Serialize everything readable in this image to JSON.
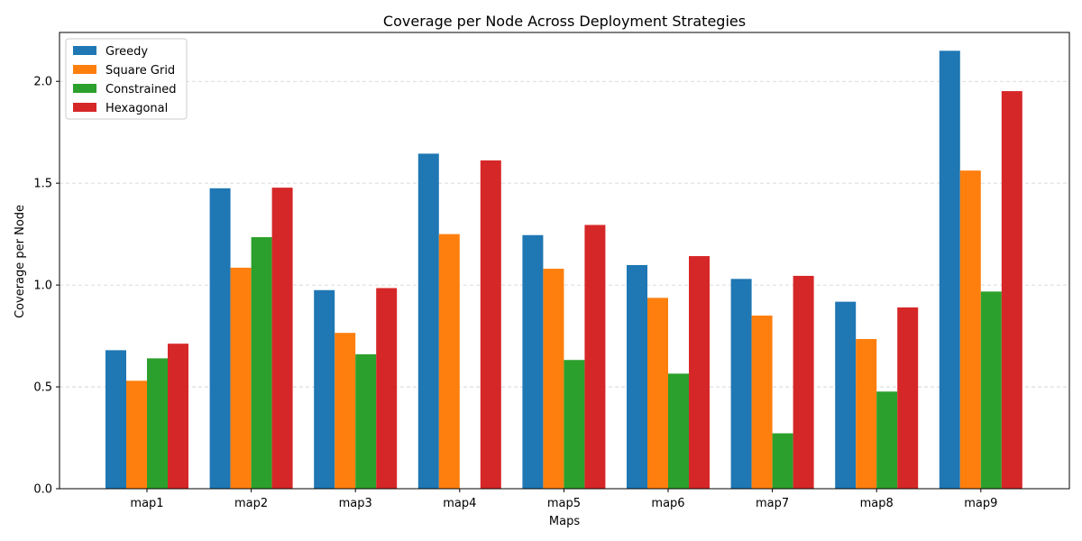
{
  "chart_data": {
    "type": "bar",
    "title": "Coverage per Node Across Deployment Strategies",
    "xlabel": "Maps",
    "ylabel": "Coverage per Node",
    "categories": [
      "map1",
      "map2",
      "map3",
      "map4",
      "map5",
      "map6",
      "map7",
      "map8",
      "map9"
    ],
    "ylim": [
      0,
      2.24
    ],
    "yticks": [
      "0.0",
      "0.5",
      "1.0",
      "1.5",
      "2.0"
    ],
    "grid": "y-dashed",
    "legend_position": "top-left",
    "series": [
      {
        "name": "Greedy",
        "color": "#1f77b4",
        "values": [
          0.68,
          1.475,
          0.975,
          1.645,
          1.245,
          1.098,
          1.03,
          0.918,
          2.15
        ]
      },
      {
        "name": "Square Grid",
        "color": "#ff7f0e",
        "values": [
          0.53,
          1.085,
          0.765,
          1.25,
          1.08,
          0.937,
          0.85,
          0.735,
          1.562
        ]
      },
      {
        "name": "Constrained",
        "color": "#2ca02c",
        "values": [
          0.64,
          1.235,
          0.66,
          0.0,
          0.632,
          0.565,
          0.272,
          0.477,
          0.968
        ]
      },
      {
        "name": "Hexagonal",
        "color": "#d62728",
        "values": [
          0.712,
          1.478,
          0.985,
          1.612,
          1.295,
          1.142,
          1.045,
          0.89,
          1.952
        ]
      }
    ]
  }
}
